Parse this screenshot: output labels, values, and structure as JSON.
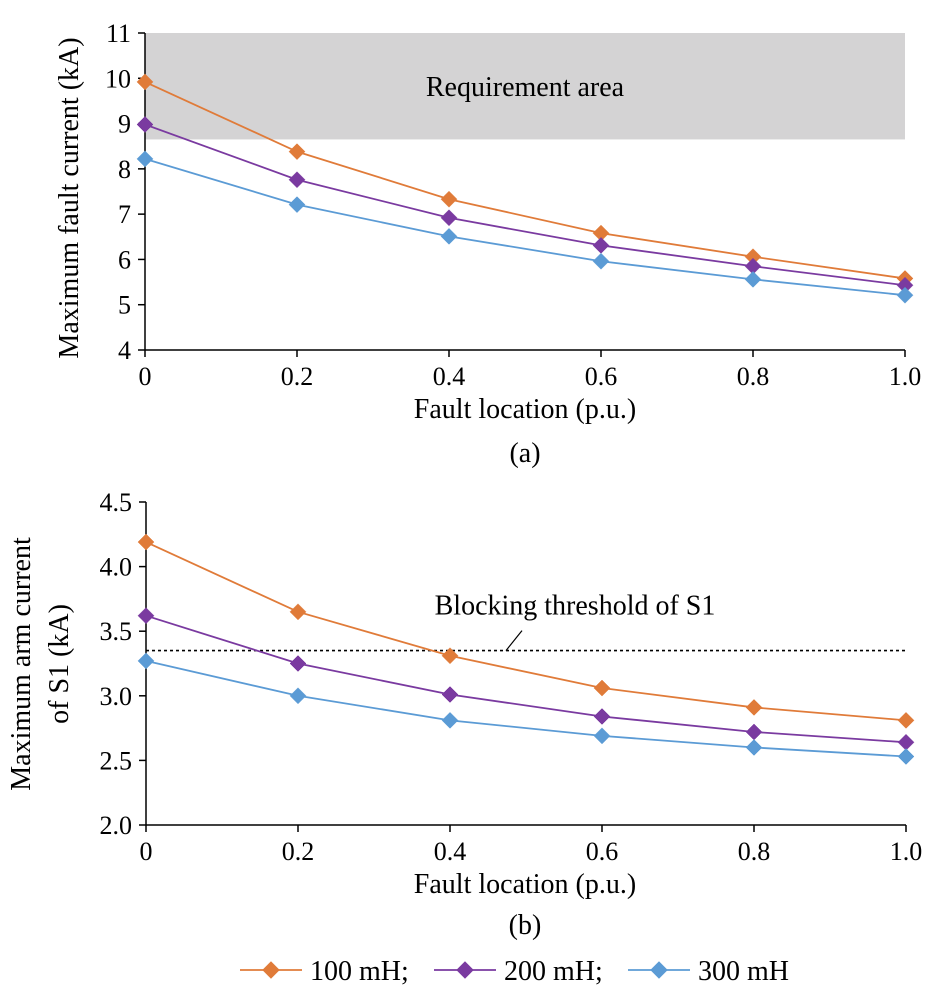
{
  "chart_data": [
    {
      "panel_label": "(a)",
      "type": "line",
      "xlabel": "Fault location (p.u.)",
      "ylabel": "Maximum fault current (kA)",
      "x": [
        0,
        0.2,
        0.4,
        0.6,
        0.8,
        1.0
      ],
      "x_tick_labels": [
        "0",
        "0.2",
        "0.4",
        "0.6",
        "0.8",
        "1.0"
      ],
      "ylim": [
        4,
        11
      ],
      "y_ticks": [
        4,
        5,
        6,
        7,
        8,
        9,
        10,
        11
      ],
      "y_tick_labels": [
        "4",
        "5",
        "6",
        "7",
        "8",
        "9",
        "10",
        "11"
      ],
      "series": [
        {
          "name": "100 mH",
          "color": "#e07b39",
          "values": [
            9.92,
            8.38,
            7.33,
            6.58,
            6.06,
            5.58
          ]
        },
        {
          "name": "200 mH",
          "color": "#7a3aa0",
          "values": [
            8.98,
            7.76,
            6.92,
            6.31,
            5.85,
            5.43
          ]
        },
        {
          "name": "300 mH",
          "color": "#5b9bd5",
          "values": [
            8.22,
            7.21,
            6.51,
            5.96,
            5.56,
            5.21
          ]
        }
      ],
      "shaded_region": {
        "label": "Requirement area",
        "y_from": 8.65,
        "y_to": 11,
        "color": "#d4d3d4"
      },
      "grid": false
    },
    {
      "panel_label": "(b)",
      "type": "line",
      "xlabel": "Fault location (p.u.)",
      "ylabel_lines": [
        "Maximum arm current",
        "of S1 (kA)"
      ],
      "x": [
        0,
        0.2,
        0.4,
        0.6,
        0.8,
        1.0
      ],
      "x_tick_labels": [
        "0",
        "0.2",
        "0.4",
        "0.6",
        "0.8",
        "1.0"
      ],
      "ylim": [
        2.0,
        4.5
      ],
      "y_ticks": [
        2.0,
        2.5,
        3.0,
        3.5,
        4.0,
        4.5
      ],
      "y_tick_labels": [
        "2.0",
        "2.5",
        "3.0",
        "3.5",
        "4.0",
        "4.5"
      ],
      "series": [
        {
          "name": "100 mH",
          "color": "#e07b39",
          "values": [
            4.19,
            3.65,
            3.31,
            3.06,
            2.91,
            2.81
          ]
        },
        {
          "name": "200 mH",
          "color": "#7a3aa0",
          "values": [
            3.62,
            3.25,
            3.01,
            2.84,
            2.72,
            2.64
          ]
        },
        {
          "name": "300 mH",
          "color": "#5b9bd5",
          "values": [
            3.27,
            3.0,
            2.81,
            2.69,
            2.6,
            2.53
          ]
        }
      ],
      "threshold_line": {
        "label": "Blocking threshold of S1",
        "y": 3.35
      },
      "grid": false
    }
  ],
  "legend": {
    "placement": "bottom-center",
    "entries": [
      "100 mH;",
      "200 mH;",
      "300 mH"
    ]
  }
}
